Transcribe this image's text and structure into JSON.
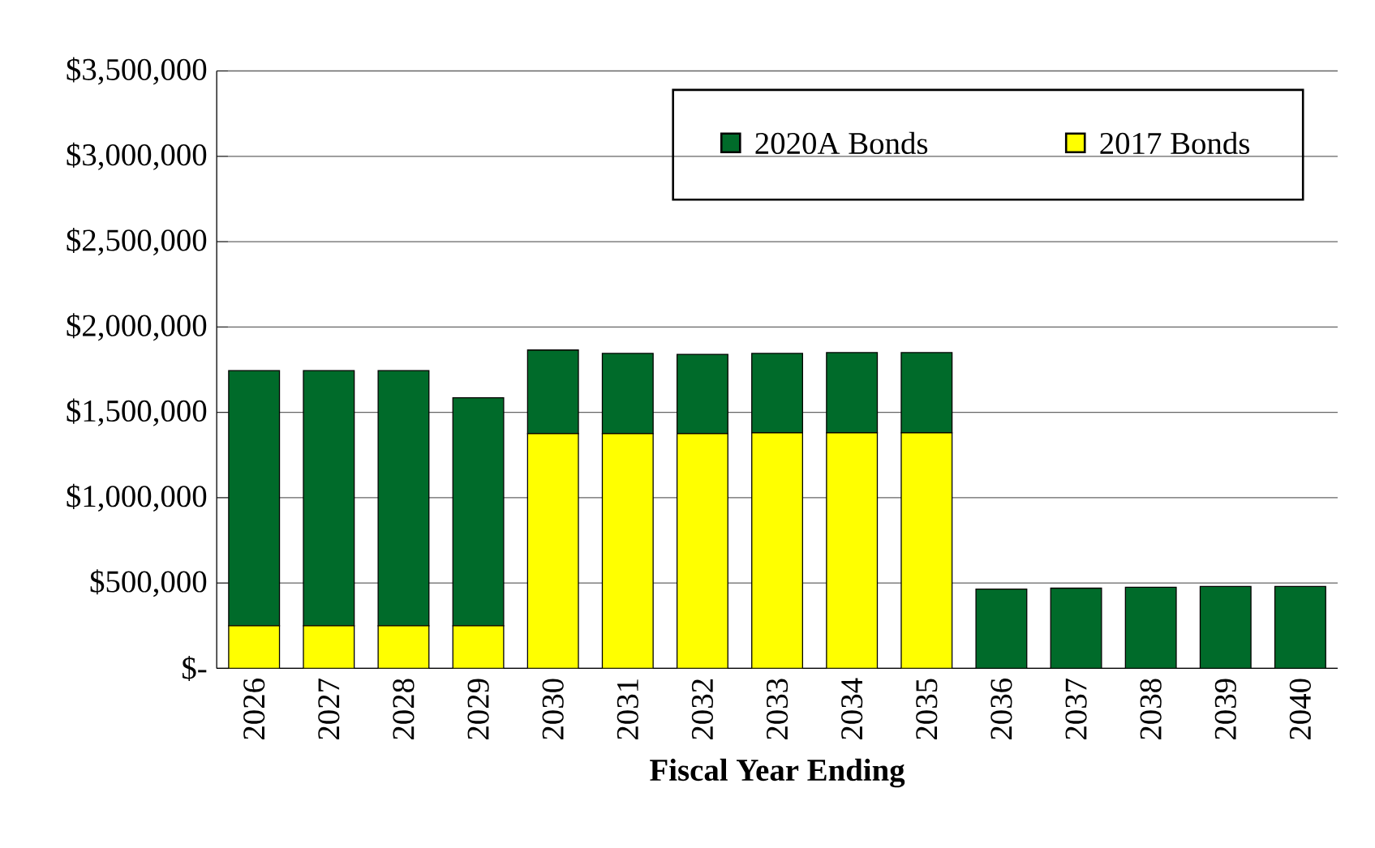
{
  "chart_data": {
    "type": "bar",
    "stacked": true,
    "xlabel": "Fiscal Year Ending",
    "categories": [
      "2026",
      "2027",
      "2028",
      "2029",
      "2030",
      "2031",
      "2032",
      "2033",
      "2034",
      "2035",
      "2036",
      "2037",
      "2038",
      "2039",
      "2040"
    ],
    "series": [
      {
        "name": "2017 Bonds",
        "color": "#ffff00",
        "values": [
          250000,
          250000,
          250000,
          250000,
          1375000,
          1375000,
          1375000,
          1380000,
          1380000,
          1380000,
          null,
          null,
          null,
          null,
          null
        ]
      },
      {
        "name": "2020A Bonds",
        "color": "#006b2a",
        "values": [
          1495000,
          1495000,
          1495000,
          1335000,
          490000,
          470000,
          465000,
          465000,
          470000,
          470000,
          465000,
          470000,
          475000,
          480000,
          480000
        ]
      }
    ],
    "ylim": [
      0,
      3500000
    ],
    "yticks": [
      {
        "value": 0,
        "label": "$-"
      },
      {
        "value": 500000,
        "label": "$500,000"
      },
      {
        "value": 1000000,
        "label": "$1,000,000"
      },
      {
        "value": 1500000,
        "label": "$1,500,000"
      },
      {
        "value": 2000000,
        "label": "$2,000,000"
      },
      {
        "value": 2500000,
        "label": "$2,500,000"
      },
      {
        "value": 3000000,
        "label": "$3,000,000"
      },
      {
        "value": 3500000,
        "label": "$3,500,000"
      }
    ],
    "grid": "y",
    "legend": "top right"
  }
}
